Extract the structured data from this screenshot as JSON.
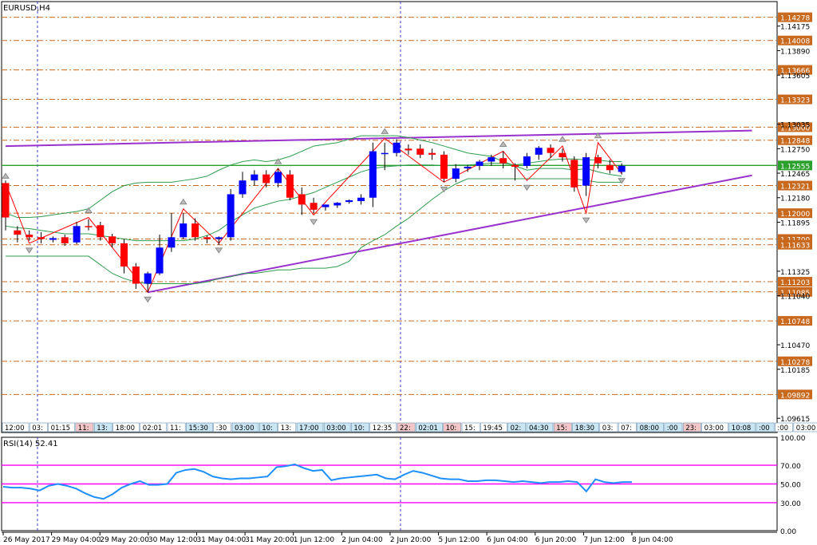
{
  "chart_data": [
    {
      "type": "candlestick",
      "title": "EURUSD,H4",
      "y_ticks": [
        "1.14175",
        "1.13890",
        "1.13605",
        "1.13035",
        "1.12750",
        "1.12465",
        "1.12180",
        "1.11895",
        "1.11325",
        "1.11040",
        "1.10470",
        "1.10185",
        "1.09615"
      ],
      "ylim": [
        1.0945,
        1.1446
      ],
      "price_levels": [
        {
          "label": "1.14278",
          "value": 1.14278,
          "color": "#c8691e"
        },
        {
          "label": "1.14008",
          "value": 1.14008,
          "color": "#c8691e"
        },
        {
          "label": "1.13666",
          "value": 1.13666,
          "color": "#c8691e"
        },
        {
          "label": "1.13323",
          "value": 1.13323,
          "color": "#c8691e"
        },
        {
          "label": "1.13000",
          "value": 1.13,
          "color": "#c8691e"
        },
        {
          "label": "1.12848",
          "value": 1.12848,
          "color": "#c8691e"
        },
        {
          "label": "1.12555",
          "value": 1.12555,
          "color": "#2ca02c"
        },
        {
          "label": "1.12321",
          "value": 1.12321,
          "color": "#c8691e"
        },
        {
          "label": "1.12000",
          "value": 1.12,
          "color": "#c8691e"
        },
        {
          "label": "1.11700",
          "value": 1.117,
          "color": "#c8691e"
        },
        {
          "label": "1.11633",
          "value": 1.11633,
          "color": "#c8691e"
        },
        {
          "label": "1.11203",
          "value": 1.11203,
          "color": "#c8691e"
        },
        {
          "label": "1.11085",
          "value": 1.11085,
          "color": "#c8691e"
        },
        {
          "label": "1.10748",
          "value": 1.10748,
          "color": "#c8691e"
        },
        {
          "label": "1.10278",
          "value": 1.10278,
          "color": "#c8691e"
        },
        {
          "label": "1.09892",
          "value": 1.09892,
          "color": "#c8691e"
        }
      ],
      "candles": [
        {
          "o": 1.1235,
          "h": 1.1238,
          "c": 1.1195,
          "l": 1.118
        },
        {
          "o": 1.118,
          "h": 1.1185,
          "c": 1.1175,
          "l": 1.1166
        },
        {
          "o": 1.1175,
          "h": 1.118,
          "c": 1.1172,
          "l": 1.1168
        },
        {
          "o": 1.1172,
          "h": 1.1178,
          "c": 1.117,
          "l": 1.1165
        },
        {
          "o": 1.1169,
          "h": 1.1173,
          "c": 1.1171,
          "l": 1.1166
        },
        {
          "o": 1.1172,
          "h": 1.1175,
          "c": 1.1165,
          "l": 1.1162
        },
        {
          "o": 1.1166,
          "h": 1.119,
          "c": 1.1185,
          "l": 1.1164
        },
        {
          "o": 1.1185,
          "h": 1.1193,
          "c": 1.1184,
          "l": 1.118
        },
        {
          "o": 1.1186,
          "h": 1.119,
          "c": 1.1172,
          "l": 1.1168
        },
        {
          "o": 1.1173,
          "h": 1.1176,
          "c": 1.1165,
          "l": 1.116
        },
        {
          "o": 1.1165,
          "h": 1.117,
          "c": 1.1138,
          "l": 1.113
        },
        {
          "o": 1.1138,
          "h": 1.1142,
          "c": 1.1118,
          "l": 1.1112
        },
        {
          "o": 1.1118,
          "h": 1.1132,
          "c": 1.113,
          "l": 1.1108
        },
        {
          "o": 1.113,
          "h": 1.1175,
          "c": 1.116,
          "l": 1.1128
        },
        {
          "o": 1.116,
          "h": 1.12,
          "c": 1.1172,
          "l": 1.1155
        },
        {
          "o": 1.1172,
          "h": 1.12,
          "c": 1.1188,
          "l": 1.117
        },
        {
          "o": 1.1188,
          "h": 1.1194,
          "c": 1.1172,
          "l": 1.1168
        },
        {
          "o": 1.1172,
          "h": 1.1174,
          "c": 1.117,
          "l": 1.1165
        },
        {
          "o": 1.117,
          "h": 1.1173,
          "c": 1.1172,
          "l": 1.1163
        },
        {
          "o": 1.1172,
          "h": 1.1228,
          "c": 1.1222,
          "l": 1.1168
        },
        {
          "o": 1.1222,
          "h": 1.1248,
          "c": 1.1238,
          "l": 1.1218
        },
        {
          "o": 1.1238,
          "h": 1.125,
          "c": 1.1245,
          "l": 1.1232
        },
        {
          "o": 1.1245,
          "h": 1.125,
          "c": 1.1235,
          "l": 1.123
        },
        {
          "o": 1.1235,
          "h": 1.1252,
          "c": 1.1248,
          "l": 1.123
        },
        {
          "o": 1.1245,
          "h": 1.125,
          "c": 1.1218,
          "l": 1.1215
        },
        {
          "o": 1.1222,
          "h": 1.123,
          "c": 1.121,
          "l": 1.1198
        },
        {
          "o": 1.1212,
          "h": 1.1218,
          "c": 1.1204,
          "l": 1.12
        },
        {
          "o": 1.1207,
          "h": 1.121,
          "c": 1.121,
          "l": 1.1203
        },
        {
          "o": 1.1209,
          "h": 1.1213,
          "c": 1.1212,
          "l": 1.1206
        },
        {
          "o": 1.1213,
          "h": 1.1216,
          "c": 1.1215,
          "l": 1.1211
        },
        {
          "o": 1.1214,
          "h": 1.1222,
          "c": 1.1218,
          "l": 1.121
        },
        {
          "o": 1.1218,
          "h": 1.1282,
          "c": 1.1272,
          "l": 1.1207
        },
        {
          "o": 1.127,
          "h": 1.1282,
          "c": 1.127,
          "l": 1.125
        },
        {
          "o": 1.127,
          "h": 1.1286,
          "c": 1.1282,
          "l": 1.1266
        },
        {
          "o": 1.1275,
          "h": 1.128,
          "c": 1.1273,
          "l": 1.1268
        },
        {
          "o": 1.1275,
          "h": 1.128,
          "c": 1.1268,
          "l": 1.1264
        },
        {
          "o": 1.127,
          "h": 1.1275,
          "c": 1.1268,
          "l": 1.1262
        },
        {
          "o": 1.1268,
          "h": 1.1272,
          "c": 1.124,
          "l": 1.1236
        },
        {
          "o": 1.124,
          "h": 1.1257,
          "c": 1.1252,
          "l": 1.1236
        },
        {
          "o": 1.1252,
          "h": 1.1256,
          "c": 1.1254,
          "l": 1.1248
        },
        {
          "o": 1.1255,
          "h": 1.1262,
          "c": 1.126,
          "l": 1.125
        },
        {
          "o": 1.126,
          "h": 1.1268,
          "c": 1.1265,
          "l": 1.1255
        },
        {
          "o": 1.1264,
          "h": 1.1272,
          "c": 1.1258,
          "l": 1.1252
        },
        {
          "o": 1.1256,
          "h": 1.1258,
          "c": 1.1254,
          "l": 1.1238
        },
        {
          "o": 1.1255,
          "h": 1.127,
          "c": 1.1266,
          "l": 1.1252
        },
        {
          "o": 1.1268,
          "h": 1.1278,
          "c": 1.1276,
          "l": 1.1262
        },
        {
          "o": 1.1276,
          "h": 1.128,
          "c": 1.127,
          "l": 1.1264
        },
        {
          "o": 1.127,
          "h": 1.1275,
          "c": 1.1265,
          "l": 1.126
        },
        {
          "o": 1.1262,
          "h": 1.1266,
          "c": 1.123,
          "l": 1.1225
        },
        {
          "o": 1.1232,
          "h": 1.127,
          "c": 1.1265,
          "l": 1.122
        },
        {
          "o": 1.1265,
          "h": 1.1268,
          "c": 1.1258,
          "l": 1.1252
        },
        {
          "o": 1.1256,
          "h": 1.1262,
          "c": 1.125,
          "l": 1.1246
        },
        {
          "o": 1.1248,
          "h": 1.1258,
          "c": 1.1255,
          "l": 1.1245
        }
      ],
      "bollinger": {
        "upper": [
          1.12,
          1.1195,
          1.1195,
          1.1196,
          1.1198,
          1.12,
          1.1202,
          1.1205,
          1.1215,
          1.1225,
          1.1232,
          1.1235,
          1.1236,
          1.1236,
          1.1236,
          1.1238,
          1.124,
          1.1243,
          1.125,
          1.1256,
          1.126,
          1.1262,
          1.126,
          1.1262,
          1.1266,
          1.1272,
          1.1278,
          1.128,
          1.1282,
          1.1286,
          1.129,
          1.129,
          1.129,
          1.129,
          1.1288,
          1.1285,
          1.1282,
          1.1278,
          1.1274,
          1.127,
          1.1268,
          1.1266,
          1.126,
          1.1255,
          1.125,
          1.1252,
          1.1252,
          1.1252,
          1.125,
          1.1252,
          1.1248,
          1.1245,
          1.1243
        ],
        "middle": [
          1.1185,
          1.1183,
          1.1182,
          1.118,
          1.1178,
          1.1176,
          1.1176,
          1.1176,
          1.1174,
          1.1172,
          1.117,
          1.1168,
          1.1168,
          1.1168,
          1.1168,
          1.1168,
          1.117,
          1.1174,
          1.118,
          1.119,
          1.1198,
          1.1206,
          1.121,
          1.1214,
          1.1216,
          1.122,
          1.1224,
          1.123,
          1.1236,
          1.1242,
          1.1248,
          1.1252,
          1.1254,
          1.1255,
          1.1256,
          1.1256,
          1.1256,
          1.1255,
          1.1256,
          1.1256,
          1.1257,
          1.1258,
          1.1258,
          1.1256,
          1.1258,
          1.126,
          1.1262,
          1.1263,
          1.1263,
          1.1262,
          1.1262,
          1.126,
          1.126
        ],
        "lower": [
          1.115,
          1.115,
          1.115,
          1.115,
          1.115,
          1.115,
          1.115,
          1.115,
          1.114,
          1.113,
          1.1124,
          1.112,
          1.1118,
          1.1118,
          1.1118,
          1.1118,
          1.1118,
          1.112,
          1.1124,
          1.1126,
          1.113,
          1.113,
          1.1132,
          1.1134,
          1.1134,
          1.1136,
          1.1136,
          1.1136,
          1.1138,
          1.1144,
          1.116,
          1.1168,
          1.1175,
          1.1185,
          1.1194,
          1.1205,
          1.1216,
          1.1226,
          1.1234,
          1.124,
          1.124,
          1.124,
          1.124,
          1.124,
          1.124,
          1.124,
          1.124,
          1.124,
          1.124,
          1.1238,
          1.1236,
          1.1236,
          1.1236
        ]
      },
      "zigzag": [
        [
          0,
          1.1235
        ],
        [
          2,
          1.1165
        ],
        [
          7,
          1.1195
        ],
        [
          12,
          1.1108
        ],
        [
          15,
          1.1205
        ],
        [
          18,
          1.1165
        ],
        [
          23,
          1.1252
        ],
        [
          26,
          1.1198
        ],
        [
          32,
          1.1287
        ],
        [
          37,
          1.1236
        ],
        [
          42,
          1.1272
        ],
        [
          44,
          1.1238
        ],
        [
          47,
          1.1278
        ],
        [
          49,
          1.12
        ],
        [
          50,
          1.1282
        ],
        [
          52,
          1.1246
        ]
      ],
      "trendlines": [
        {
          "from": [
            0,
            1.1278
          ],
          "to": [
            63,
            1.1296
          ],
          "color": "#9932cc"
        },
        {
          "from": [
            12,
            1.1108
          ],
          "to": [
            63,
            1.1244
          ],
          "color": "#9932cc"
        }
      ],
      "time_labels": [
        "26 May 2017",
        "29 May 04:00",
        "29 May 20:00",
        "30 May 12:00",
        "31 May 04:00",
        "31 May 20:00",
        "1 Jun 12:00",
        "2 Jun 04:00",
        "2 Jun 20:00",
        "5 Jun 12:00",
        "6 Jun 04:00",
        "6 Jun 20:00",
        "7 Jun 12:00",
        "8 Jun 04:00"
      ],
      "session_labels": [
        {
          "text": "12:00",
          "color": "#ffffff"
        },
        {
          "text": "03:",
          "color": "#ffffff"
        },
        {
          "text": "01:15",
          "color": "#ffffff"
        },
        {
          "text": "11:",
          "color": "#f2c6c6"
        },
        {
          "text": "13:",
          "color": "#c9e6f2"
        },
        {
          "text": "18:00",
          "color": "#ffffff"
        },
        {
          "text": "02:01",
          "color": "#ffffff"
        },
        {
          "text": "11:",
          "color": "#ffffff"
        },
        {
          "text": "15:30",
          "color": "#c9e6f2"
        },
        {
          "text": ":30",
          "color": "#ffffff"
        },
        {
          "text": "03:00",
          "color": "#c9e6f2"
        },
        {
          "text": "10:",
          "color": "#c9e6f2"
        },
        {
          "text": "13:",
          "color": "#ffffff"
        },
        {
          "text": "17:00",
          "color": "#c9e6f2"
        },
        {
          "text": "03:00",
          "color": "#c9e6f2"
        },
        {
          "text": "10:",
          "color": "#c9e6f2"
        },
        {
          "text": "12:35",
          "color": "#ffffff"
        },
        {
          "text": "22:",
          "color": "#f2c6c6"
        },
        {
          "text": "02:01",
          "color": "#c9e6f2"
        },
        {
          "text": "10:",
          "color": "#f2c6c6"
        },
        {
          "text": "15:",
          "color": "#ffffff"
        },
        {
          "text": "19:45",
          "color": "#ffffff"
        },
        {
          "text": "02:",
          "color": "#c9e6f2"
        },
        {
          "text": "04:30",
          "color": "#c9e6f2"
        },
        {
          "text": "15:",
          "color": "#f2c6c6"
        },
        {
          "text": "18:30",
          "color": "#c9e6f2"
        },
        {
          "text": "03:",
          "color": "#ffffff"
        },
        {
          "text": "07:",
          "color": "#ffffff"
        },
        {
          "text": "08:00",
          "color": "#c9e6f2"
        },
        {
          "text": ":00",
          "color": "#c9e6f2"
        },
        {
          "text": "23:",
          "color": "#f2c6c6"
        },
        {
          "text": "03:00",
          "color": "#ffffff"
        },
        {
          "text": "10:08",
          "color": "#c9e6f2"
        },
        {
          "text": ":00",
          "color": "#c9e6f2"
        },
        {
          "text": ":00",
          "color": "#ffffff"
        },
        {
          "text": "03:00",
          "color": "#ffffff"
        },
        {
          "text": ":30",
          "color": "#ffffff"
        },
        {
          "text": "12:00",
          "color": "#ffffff"
        },
        {
          "text": ":30",
          "color": "#ffffff"
        },
        {
          "text": "03:00",
          "color": "#ffffff"
        },
        {
          "text": "09:00",
          "color": "#ffffff"
        },
        {
          "text": "17:00",
          "color": "#ffffff"
        },
        {
          "text": "2:30",
          "color": "#ffffff"
        }
      ],
      "up_color": "#0000ff",
      "down_color": "#ff0000"
    },
    {
      "type": "line",
      "title": "RSI(14) 52.41",
      "ylim": [
        0,
        100
      ],
      "y_ticks": [
        "100.00",
        "70.00",
        "50.00",
        "30.00",
        "0.00"
      ],
      "levels": [
        70,
        50,
        30
      ],
      "values": [
        47,
        46,
        46,
        45,
        43,
        48,
        50,
        48,
        45,
        40,
        36,
        34,
        39,
        46,
        50,
        53,
        49,
        49,
        50,
        62,
        65,
        66,
        63,
        58,
        56,
        55,
        56,
        56,
        57,
        58,
        68,
        69,
        71,
        67,
        64,
        65,
        54,
        56,
        57,
        58,
        59,
        60,
        56,
        55,
        60,
        64,
        62,
        59,
        56,
        55,
        55,
        53,
        53,
        54,
        54,
        53,
        52,
        53,
        52,
        51,
        52,
        52,
        53,
        52,
        42,
        55,
        52,
        51,
        52,
        52
      ],
      "line_color": "#1e90ff",
      "level_color": "#ff00ff"
    }
  ]
}
